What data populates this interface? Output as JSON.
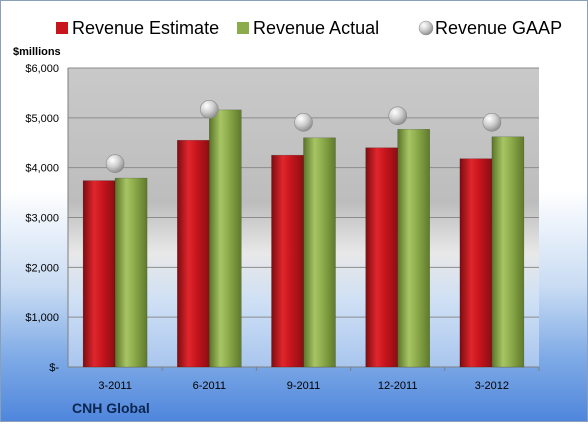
{
  "chart_data": {
    "type": "bar",
    "title": "",
    "unit_label": "$millions",
    "company": "CNH Global",
    "categories": [
      "3-2011",
      "6-2011",
      "9-2011",
      "12-2011",
      "3-2012"
    ],
    "series": [
      {
        "name": "Revenue Estimate",
        "kind": "bar",
        "color": "#c8151d",
        "values": [
          3740,
          4550,
          4250,
          4400,
          4180
        ]
      },
      {
        "name": "Revenue Actual",
        "kind": "bar",
        "color": "#8cab4a",
        "values": [
          3790,
          5160,
          4600,
          4770,
          4620
        ]
      },
      {
        "name": "Revenue GAAP",
        "kind": "marker",
        "color": "#b9b9b9",
        "values": [
          4080,
          5170,
          4910,
          5040,
          4910
        ]
      }
    ],
    "ylim": [
      0,
      6000
    ],
    "yticks": [
      0,
      1000,
      2000,
      3000,
      4000,
      5000,
      6000
    ],
    "ytick_labels": [
      "$-",
      "$1,000",
      "$2,000",
      "$3,000",
      "$4,000",
      "$5,000",
      "$6,000"
    ],
    "grid": true,
    "legend_position": "top"
  }
}
